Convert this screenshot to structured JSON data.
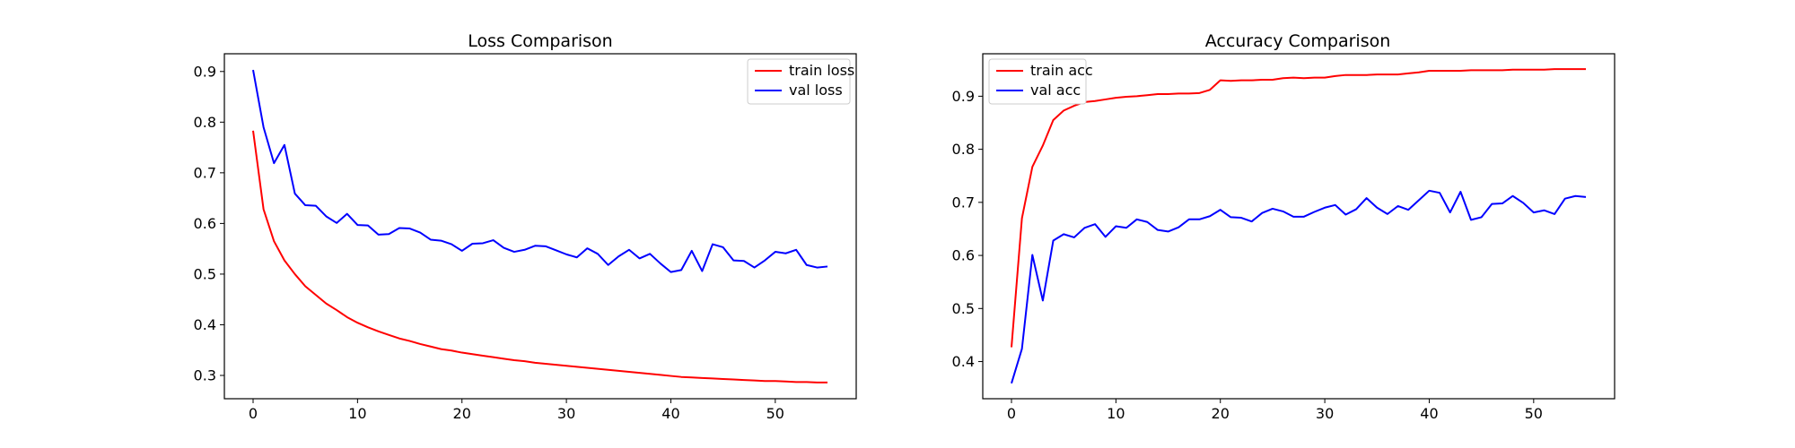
{
  "chart_data": [
    {
      "type": "line",
      "title": "Loss Comparison",
      "xlabel": "",
      "ylabel": "",
      "xlim": [
        -2.75,
        57.75
      ],
      "ylim": [
        0.254,
        0.935
      ],
      "xticks": [
        0,
        10,
        20,
        30,
        40,
        50
      ],
      "yticks": [
        0.3,
        0.4,
        0.5,
        0.6,
        0.7,
        0.8,
        0.9
      ],
      "grid": false,
      "legend_position": "upper right",
      "x": [
        0,
        1,
        2,
        3,
        4,
        5,
        6,
        7,
        8,
        9,
        10,
        11,
        12,
        13,
        14,
        15,
        16,
        17,
        18,
        19,
        20,
        21,
        22,
        23,
        24,
        25,
        26,
        27,
        28,
        29,
        30,
        31,
        32,
        33,
        34,
        35,
        36,
        37,
        38,
        39,
        40,
        41,
        42,
        43,
        44,
        45,
        46,
        47,
        48,
        49,
        50,
        51,
        52,
        53,
        54,
        55
      ],
      "series": [
        {
          "name": "train loss",
          "color": "#ff0000",
          "values": [
            0.783,
            0.628,
            0.565,
            0.527,
            0.5,
            0.476,
            0.459,
            0.442,
            0.429,
            0.415,
            0.404,
            0.395,
            0.387,
            0.38,
            0.373,
            0.368,
            0.362,
            0.357,
            0.352,
            0.349,
            0.345,
            0.342,
            0.339,
            0.336,
            0.333,
            0.33,
            0.328,
            0.325,
            0.323,
            0.321,
            0.319,
            0.317,
            0.315,
            0.313,
            0.311,
            0.309,
            0.307,
            0.305,
            0.303,
            0.301,
            0.299,
            0.297,
            0.296,
            0.295,
            0.294,
            0.293,
            0.292,
            0.291,
            0.29,
            0.289,
            0.289,
            0.288,
            0.287,
            0.287,
            0.286,
            0.286
          ]
        },
        {
          "name": "val loss",
          "color": "#0000ff",
          "values": [
            0.903,
            0.79,
            0.719,
            0.755,
            0.659,
            0.636,
            0.635,
            0.614,
            0.601,
            0.619,
            0.597,
            0.596,
            0.578,
            0.579,
            0.591,
            0.59,
            0.582,
            0.568,
            0.566,
            0.559,
            0.546,
            0.56,
            0.561,
            0.567,
            0.552,
            0.544,
            0.548,
            0.556,
            0.555,
            0.547,
            0.539,
            0.533,
            0.551,
            0.54,
            0.518,
            0.535,
            0.548,
            0.531,
            0.54,
            0.521,
            0.504,
            0.508,
            0.546,
            0.506,
            0.559,
            0.553,
            0.527,
            0.526,
            0.513,
            0.527,
            0.544,
            0.541,
            0.548,
            0.518,
            0.513,
            0.515
          ]
        }
      ]
    },
    {
      "type": "line",
      "title": "Accuracy Comparison",
      "xlabel": "",
      "ylabel": "",
      "xlim": [
        -2.75,
        57.75
      ],
      "ylim": [
        0.33,
        0.98
      ],
      "xticks": [
        0,
        10,
        20,
        30,
        40,
        50
      ],
      "yticks": [
        0.4,
        0.5,
        0.6,
        0.7,
        0.8,
        0.9
      ],
      "grid": false,
      "legend_position": "upper left",
      "x": [
        0,
        1,
        2,
        3,
        4,
        5,
        6,
        7,
        8,
        9,
        10,
        11,
        12,
        13,
        14,
        15,
        16,
        17,
        18,
        19,
        20,
        21,
        22,
        23,
        24,
        25,
        26,
        27,
        28,
        29,
        30,
        31,
        32,
        33,
        34,
        35,
        36,
        37,
        38,
        39,
        40,
        41,
        42,
        43,
        44,
        45,
        46,
        47,
        48,
        49,
        50,
        51,
        52,
        53,
        54,
        55
      ],
      "series": [
        {
          "name": "train acc",
          "color": "#ff0000",
          "values": [
            0.427,
            0.67,
            0.767,
            0.807,
            0.855,
            0.873,
            0.882,
            0.889,
            0.891,
            0.894,
            0.897,
            0.899,
            0.9,
            0.902,
            0.904,
            0.904,
            0.905,
            0.905,
            0.906,
            0.912,
            0.93,
            0.929,
            0.93,
            0.93,
            0.931,
            0.931,
            0.934,
            0.935,
            0.934,
            0.935,
            0.935,
            0.938,
            0.94,
            0.94,
            0.94,
            0.941,
            0.941,
            0.941,
            0.943,
            0.945,
            0.948,
            0.948,
            0.948,
            0.948,
            0.949,
            0.949,
            0.949,
            0.949,
            0.95,
            0.95,
            0.95,
            0.95,
            0.951,
            0.951,
            0.951,
            0.951
          ]
        },
        {
          "name": "val acc",
          "color": "#0000ff",
          "values": [
            0.359,
            0.424,
            0.601,
            0.515,
            0.628,
            0.64,
            0.634,
            0.652,
            0.659,
            0.635,
            0.655,
            0.652,
            0.668,
            0.663,
            0.648,
            0.645,
            0.653,
            0.668,
            0.668,
            0.674,
            0.686,
            0.672,
            0.671,
            0.664,
            0.68,
            0.688,
            0.683,
            0.673,
            0.673,
            0.682,
            0.69,
            0.695,
            0.677,
            0.687,
            0.708,
            0.69,
            0.678,
            0.693,
            0.686,
            0.704,
            0.722,
            0.718,
            0.681,
            0.72,
            0.667,
            0.672,
            0.697,
            0.698,
            0.712,
            0.699,
            0.681,
            0.685,
            0.678,
            0.707,
            0.712,
            0.71
          ]
        }
      ]
    }
  ]
}
